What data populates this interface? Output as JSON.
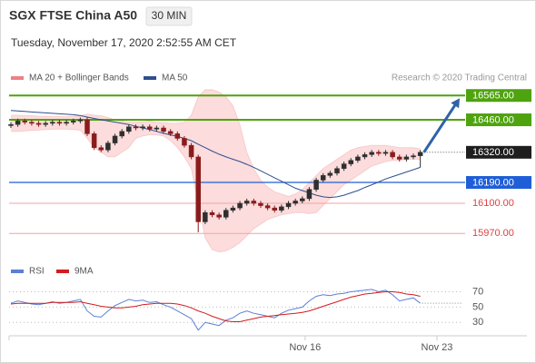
{
  "chart_data": {
    "type": "candlestick",
    "title": "SGX FTSE China A50",
    "timeframe": "30 MIN",
    "subtitle": "Tuesday, November 17, 2020 2:52:55 AM CET",
    "credit": "Research © 2020 Trading Central",
    "x": [
      0,
      1,
      2,
      3,
      4,
      5,
      6,
      7,
      8,
      9,
      10,
      11,
      12,
      13,
      14,
      15,
      16,
      17,
      18,
      19,
      20,
      21,
      22,
      23,
      24,
      25,
      26,
      27,
      28,
      29,
      30,
      31,
      32,
      33,
      34,
      35,
      36,
      37,
      38,
      39,
      40,
      41,
      42,
      43,
      44,
      45,
      46,
      47,
      48,
      49,
      50,
      51,
      52,
      53,
      54,
      55,
      56,
      57,
      58,
      59
    ],
    "xlim": [
      -0.26,
      65.2
    ],
    "xticks": [
      {
        "value": 42.4,
        "label": "Nov 16"
      },
      {
        "value": 61.4,
        "label": "Nov 23"
      }
    ],
    "ylim": [
      15920,
      16605
    ],
    "open": [
      16435,
      16440,
      16455,
      16450,
      16445,
      16440,
      16445,
      16450,
      16445,
      16450,
      16455,
      16460,
      16400,
      16340,
      16330,
      16360,
      16390,
      16410,
      16430,
      16425,
      16430,
      16420,
      16425,
      16410,
      16400,
      16380,
      16350,
      16300,
      16020,
      16060,
      16050,
      16040,
      16070,
      16080,
      16100,
      16110,
      16100,
      16090,
      16080,
      16070,
      16085,
      16100,
      16110,
      16120,
      16160,
      16200,
      16220,
      16230,
      16250,
      16270,
      16285,
      16300,
      16310,
      16320,
      16315,
      16320,
      16300,
      16290,
      16300,
      16305
    ],
    "high": [
      16450,
      16465,
      16465,
      16460,
      16455,
      16455,
      16460,
      16460,
      16460,
      16465,
      16470,
      16470,
      16410,
      16350,
      16370,
      16400,
      16420,
      16440,
      16440,
      16440,
      16440,
      16435,
      16435,
      16420,
      16410,
      16390,
      16360,
      16310,
      16070,
      16070,
      16060,
      16080,
      16090,
      16110,
      16120,
      16120,
      16110,
      16100,
      16090,
      16095,
      16110,
      16120,
      16130,
      16170,
      16210,
      16230,
      16240,
      16260,
      16280,
      16295,
      16310,
      16320,
      16330,
      16330,
      16330,
      16330,
      16310,
      16310,
      16315,
      16330
    ],
    "low": [
      16425,
      16430,
      16440,
      16435,
      16430,
      16430,
      16435,
      16435,
      16435,
      16440,
      16445,
      16390,
      16330,
      16320,
      16320,
      16350,
      16380,
      16400,
      16415,
      16415,
      16410,
      16410,
      16400,
      16390,
      16370,
      16340,
      16290,
      15975,
      16010,
      16040,
      16030,
      16030,
      16060,
      16070,
      16090,
      16090,
      16080,
      16070,
      16060,
      16060,
      16075,
      16090,
      16100,
      16110,
      16150,
      16190,
      16210,
      16220,
      16240,
      16260,
      16275,
      16290,
      16300,
      16305,
      16305,
      16290,
      16280,
      16280,
      16290,
      16255
    ],
    "close": [
      16440,
      16455,
      16450,
      16445,
      16440,
      16445,
      16450,
      16445,
      16450,
      16455,
      16460,
      16400,
      16340,
      16330,
      16360,
      16390,
      16410,
      16430,
      16425,
      16430,
      16420,
      16425,
      16410,
      16400,
      16380,
      16350,
      16300,
      16020,
      16060,
      16050,
      16040,
      16070,
      16080,
      16100,
      16110,
      16100,
      16090,
      16080,
      16070,
      16085,
      16100,
      16110,
      16120,
      16160,
      16200,
      16220,
      16230,
      16250,
      16270,
      16285,
      16300,
      16310,
      16320,
      16315,
      16320,
      16300,
      16290,
      16300,
      16305,
      16320
    ],
    "candle_colors": {
      "up": "#2f2f2f",
      "down": "#8a1c1c"
    },
    "series": [
      {
        "name": "MA 20 + Bollinger Bands",
        "color": "#f08080",
        "fill": "#fbd3d3",
        "upper": [
          16480,
          16480,
          16478,
          16478,
          16476,
          16475,
          16475,
          16474,
          16474,
          16475,
          16478,
          16485,
          16480,
          16478,
          16470,
          16460,
          16455,
          16450,
          16450,
          16452,
          16455,
          16450,
          16448,
          16445,
          16445,
          16450,
          16480,
          16560,
          16590,
          16590,
          16580,
          16560,
          16520,
          16440,
          16320,
          16250,
          16200,
          16170,
          16150,
          16140,
          16130,
          16140,
          16160,
          16190,
          16220,
          16250,
          16270,
          16290,
          16310,
          16330,
          16340,
          16345,
          16350,
          16350,
          16350,
          16345,
          16340,
          16340,
          16340,
          16335
        ],
        "lower": [
          16410,
          16410,
          16412,
          16414,
          16416,
          16418,
          16420,
          16420,
          16420,
          16418,
          16415,
          16380,
          16340,
          16320,
          16300,
          16300,
          16320,
          16340,
          16380,
          16390,
          16395,
          16395,
          16390,
          16370,
          16340,
          16300,
          16250,
          16100,
          15950,
          15900,
          15890,
          15895,
          15910,
          15930,
          15960,
          15990,
          16010,
          16030,
          16040,
          16050,
          16055,
          16060,
          16060,
          16055,
          16060,
          16090,
          16120,
          16150,
          16180,
          16200,
          16220,
          16240,
          16260,
          16270,
          16280,
          16285,
          16285,
          16290,
          16290,
          16290
        ]
      },
      {
        "name": "MA 50",
        "color": "#2e4f8f",
        "values": [
          16500,
          16498,
          16496,
          16494,
          16492,
          16490,
          16488,
          16486,
          16484,
          16482,
          16478,
          16472,
          16466,
          16460,
          16455,
          16450,
          16445,
          16440,
          16432,
          16425,
          16418,
          16410,
          16402,
          16395,
          16388,
          16380,
          16370,
          16355,
          16340,
          16325,
          16312,
          16300,
          16290,
          16280,
          16268,
          16255,
          16240,
          16225,
          16210,
          16195,
          16180,
          16165,
          16155,
          16145,
          16135,
          16128,
          16125,
          16128,
          16135,
          16145,
          16155,
          16168,
          16180,
          16192,
          16205,
          16215,
          16225,
          16235,
          16245,
          16255
        ]
      }
    ],
    "levels": {
      "values": [
        16565,
        16460,
        16320,
        16190,
        16100,
        15970
      ],
      "value_labels": [
        "16565.00",
        "16460.00",
        "16320.00",
        "16190.00",
        "16100.00",
        "15970.00"
      ],
      "colors": [
        "#4ea30e",
        "#4ea30e",
        "#1e1e1e",
        "#1f5ed8",
        "#e04040",
        "#e04040"
      ],
      "styles": [
        "box",
        "box",
        "box-dotted",
        "box",
        "text",
        "text"
      ]
    },
    "indicator": {
      "ylim": [
        15,
        80
      ],
      "yticks": [
        30,
        50,
        70
      ],
      "series": [
        {
          "name": "RSI",
          "color": "#5b7fd6",
          "values": [
            55,
            58,
            56,
            54,
            53,
            55,
            57,
            55,
            56,
            58,
            60,
            45,
            38,
            37,
            45,
            52,
            56,
            60,
            58,
            59,
            56,
            57,
            53,
            50,
            45,
            40,
            35,
            20,
            30,
            28,
            26,
            33,
            36,
            42,
            45,
            42,
            40,
            38,
            36,
            42,
            46,
            48,
            50,
            58,
            64,
            66,
            65,
            67,
            68,
            70,
            71,
            72,
            73,
            70,
            72,
            66,
            58,
            60,
            62,
            55
          ]
        },
        {
          "name": "9MA",
          "color": "#d41c1c",
          "values": [
            54,
            55,
            55,
            55,
            55,
            55,
            56,
            56,
            56,
            56,
            57,
            55,
            53,
            51,
            50,
            49,
            49,
            50,
            51,
            53,
            54,
            55,
            55,
            55,
            54,
            52,
            49,
            45,
            42,
            38,
            35,
            32,
            31,
            31,
            33,
            35,
            37,
            38,
            39,
            40,
            41,
            42,
            43,
            45,
            48,
            51,
            54,
            57,
            60,
            63,
            65,
            67,
            68,
            69,
            70,
            70,
            69,
            67,
            66,
            64
          ]
        }
      ]
    }
  }
}
